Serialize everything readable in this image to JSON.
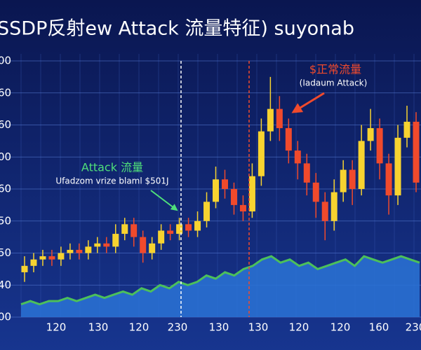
{
  "chart_data": {
    "type": "candlestick",
    "title": "SSDP反射ew Attack  流量特征) suyonab",
    "annotations": [
      "$正常流量",
      "(Iadaum Attack)",
      "Attack 流量",
      "Ufadzom vrize blaml $501J"
    ],
    "xtick_labels": [
      "120",
      "130",
      "120",
      "230",
      "130",
      "130",
      "120",
      "120",
      "160",
      "230"
    ],
    "ylim": [
      0,
      8
    ],
    "yticks": [
      {
        "value": 0,
        "label": "00"
      },
      {
        "value": 1,
        "label": "40"
      },
      {
        "value": 2,
        "label": "50"
      },
      {
        "value": 3,
        "label": "50"
      },
      {
        "value": 4,
        "label": "60"
      },
      {
        "value": 5,
        "label": "00"
      },
      {
        "value": 6,
        "label": "60"
      },
      {
        "value": 7,
        "label": "60"
      },
      {
        "value": 8,
        "label": "00"
      }
    ],
    "grid": true,
    "up_color": "#f7d330",
    "down_color": "#f04a2c",
    "area_color": "#4cc05a",
    "open": [
      1.4,
      1.6,
      1.8,
      1.9,
      1.8,
      2.0,
      2.1,
      2.0,
      2.2,
      2.3,
      2.2,
      2.6,
      2.9,
      2.5,
      2.0,
      2.3,
      2.7,
      2.6,
      2.9,
      2.7,
      3.0,
      3.6,
      4.3,
      4.0,
      3.5,
      3.3,
      4.4,
      5.8,
      6.5,
      5.9,
      5.2,
      4.8,
      4.2,
      3.6,
      3.0,
      3.9,
      4.6,
      4.0,
      5.5,
      5.9,
      4.8,
      3.8,
      5.6,
      6.1
    ],
    "close": [
      1.6,
      1.8,
      1.9,
      1.8,
      2.0,
      2.1,
      2.0,
      2.2,
      2.3,
      2.2,
      2.6,
      2.9,
      2.5,
      2.0,
      2.3,
      2.7,
      2.6,
      2.9,
      2.7,
      3.0,
      3.6,
      4.3,
      4.0,
      3.5,
      3.3,
      4.4,
      5.8,
      6.5,
      5.9,
      5.2,
      4.8,
      4.2,
      3.6,
      3.0,
      3.9,
      4.6,
      4.0,
      5.5,
      5.9,
      4.8,
      3.8,
      5.6,
      6.1,
      4.2
    ],
    "high": [
      1.9,
      2.0,
      2.1,
      2.1,
      2.2,
      2.3,
      2.3,
      2.4,
      2.5,
      2.5,
      2.9,
      3.1,
      3.1,
      2.7,
      2.5,
      2.9,
      2.9,
      3.1,
      3.1,
      3.3,
      3.9,
      4.7,
      4.6,
      4.2,
      3.8,
      4.8,
      6.2,
      7.5,
      6.9,
      6.2,
      5.5,
      5.1,
      4.5,
      3.9,
      4.3,
      4.9,
      4.9,
      6.0,
      6.5,
      6.2,
      5.1,
      6.0,
      6.6,
      6.4
    ],
    "low": [
      1.1,
      1.4,
      1.6,
      1.6,
      1.6,
      1.8,
      1.8,
      1.8,
      2.0,
      2.0,
      2.0,
      2.4,
      2.2,
      1.7,
      1.8,
      2.1,
      2.4,
      2.4,
      2.5,
      2.5,
      2.8,
      3.4,
      3.7,
      3.2,
      3.0,
      3.1,
      4.1,
      5.5,
      5.5,
      4.8,
      4.3,
      3.8,
      3.1,
      2.4,
      2.7,
      3.6,
      3.5,
      3.8,
      5.2,
      4.3,
      3.2,
      3.5,
      5.3,
      3.9
    ],
    "area_values": [
      0.4,
      0.5,
      0.4,
      0.5,
      0.5,
      0.6,
      0.5,
      0.6,
      0.7,
      0.6,
      0.7,
      0.8,
      0.7,
      0.9,
      0.8,
      1.0,
      0.9,
      1.1,
      1.0,
      1.1,
      1.3,
      1.2,
      1.4,
      1.3,
      1.5,
      1.6,
      1.8,
      1.9,
      1.7,
      1.8,
      1.6,
      1.7,
      1.5,
      1.6,
      1.7,
      1.8,
      1.6,
      1.9,
      1.8,
      1.7,
      1.8,
      1.9,
      1.8,
      1.7
    ]
  }
}
